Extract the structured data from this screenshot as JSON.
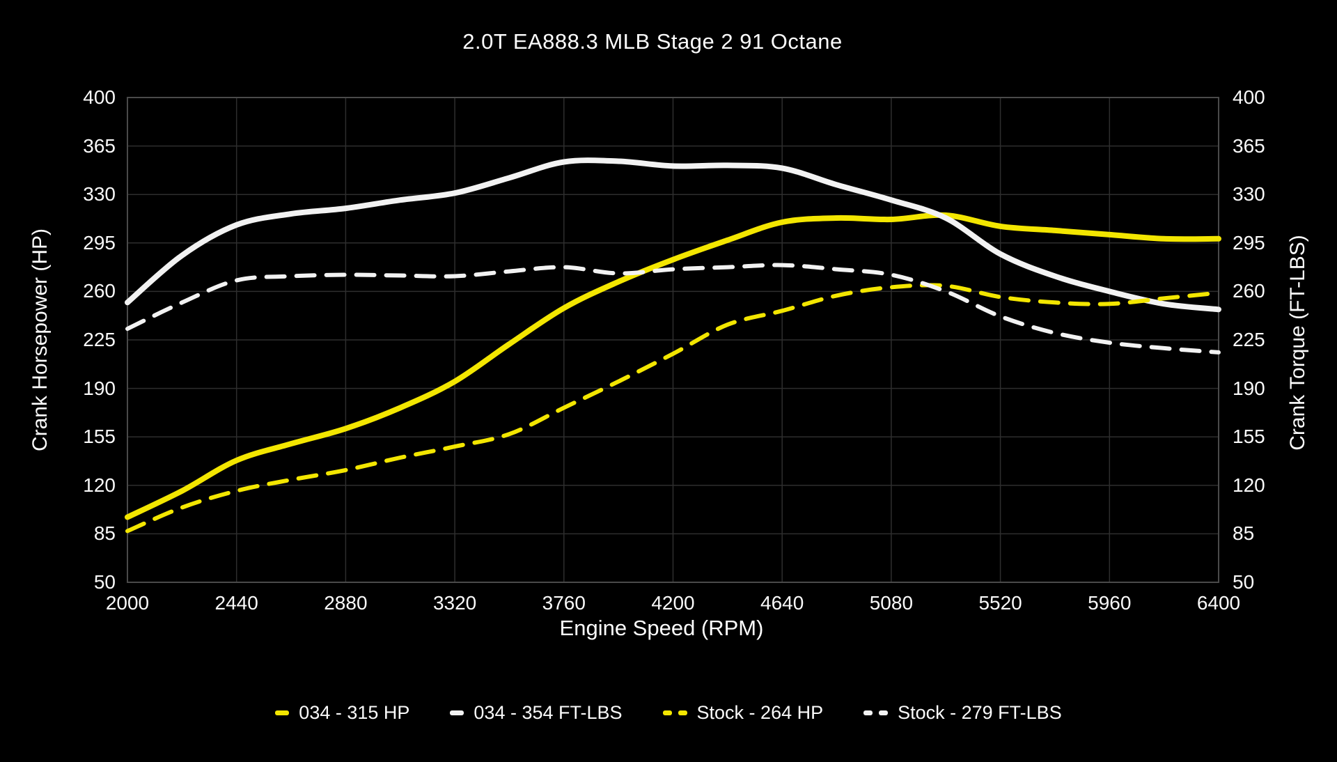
{
  "title": "2.0T EA888.3 MLB Stage 2 91 Octane",
  "colors": {
    "background": "#000000",
    "grid": "#2e2e2e",
    "axis_box": "#4a4a4a",
    "text": "#fafafa",
    "yellow": "#f3e600",
    "white": "#f2f2f2"
  },
  "chart_data": {
    "type": "line",
    "title": "2.0T EA888.3 MLB Stage 2 91 Octane",
    "xlabel": "Engine Speed (RPM)",
    "ylabel_left": "Crank Horsepower (HP)",
    "ylabel_right": "Crank Torque (FT-LBS)",
    "xlim": [
      2000,
      6400
    ],
    "ylim": [
      50,
      400
    ],
    "x_ticks": [
      2000,
      2440,
      2880,
      3320,
      3760,
      4200,
      4640,
      5080,
      5520,
      5960,
      6400
    ],
    "y_ticks": [
      50,
      85,
      120,
      155,
      190,
      225,
      260,
      295,
      330,
      365,
      400
    ],
    "grid": true,
    "legend_position": "bottom",
    "x": [
      2000,
      2220,
      2440,
      2660,
      2880,
      3100,
      3320,
      3540,
      3760,
      3980,
      4200,
      4420,
      4640,
      4860,
      5080,
      5300,
      5520,
      5740,
      5960,
      6180,
      6400
    ],
    "series": [
      {
        "name": "034 - 315 HP",
        "color": "yellow",
        "style": "solid",
        "values": [
          97,
          116,
          138,
          150,
          161,
          176,
          195,
          222,
          248,
          267,
          283,
          297,
          310,
          313,
          312,
          315,
          307,
          304,
          301,
          298,
          298
        ]
      },
      {
        "name": "034 - 354 FT-LBS",
        "color": "white",
        "style": "solid",
        "values": [
          252,
          286,
          308,
          316,
          320,
          326,
          331,
          342,
          353.5,
          354,
          350.5,
          351,
          349,
          337,
          326,
          313,
          287,
          271,
          260,
          251,
          247
        ]
      },
      {
        "name": "Stock - 264 HP",
        "color": "yellow",
        "style": "dashed",
        "values": [
          87,
          104,
          116,
          124,
          131,
          140,
          148,
          157,
          176,
          195,
          215,
          236,
          246,
          257,
          263,
          264,
          256,
          252,
          251,
          255,
          259
        ]
      },
      {
        "name": "Stock - 279 FT-LBS",
        "color": "white",
        "style": "dashed",
        "values": [
          233,
          252,
          268,
          271,
          272,
          271.5,
          271,
          274.5,
          277.5,
          273,
          276,
          277.5,
          279,
          276,
          272,
          260,
          242,
          230,
          223,
          219,
          216
        ]
      }
    ]
  }
}
